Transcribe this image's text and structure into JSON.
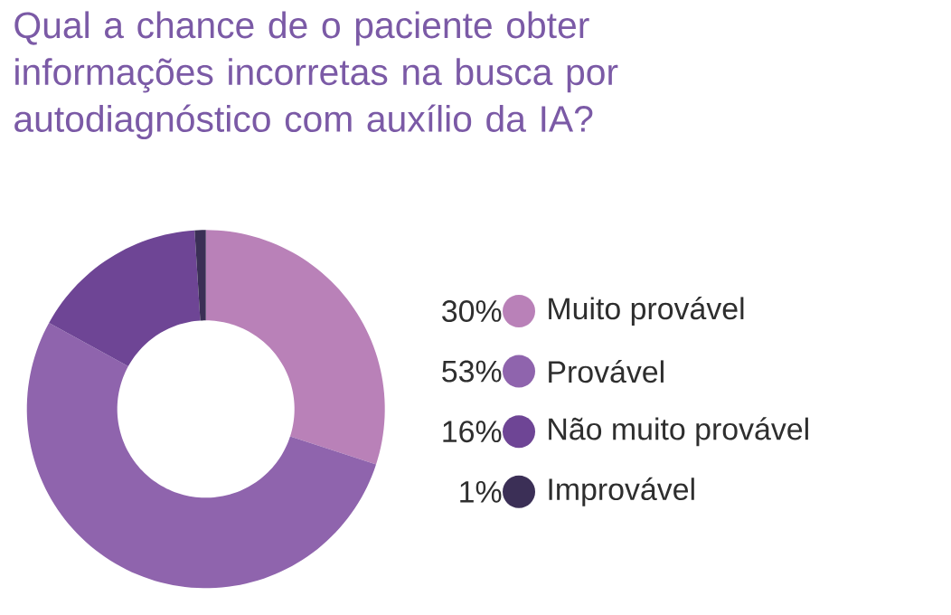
{
  "chart_data": {
    "type": "donut",
    "title": "Qual a chance de o paciente obter informações incorretas na busca por autodiagnóstico com auxílio da IA?",
    "categories": [
      "Muito provável",
      "Provável",
      "Não muito provável",
      "Improvável"
    ],
    "values": [
      30,
      53,
      16,
      1
    ],
    "colors": [
      "#b981b8",
      "#8f64ad",
      "#6e4595",
      "#3b2f56"
    ],
    "value_labels": [
      "30%",
      "53%",
      "16%",
      "1%"
    ],
    "legend": "right"
  }
}
